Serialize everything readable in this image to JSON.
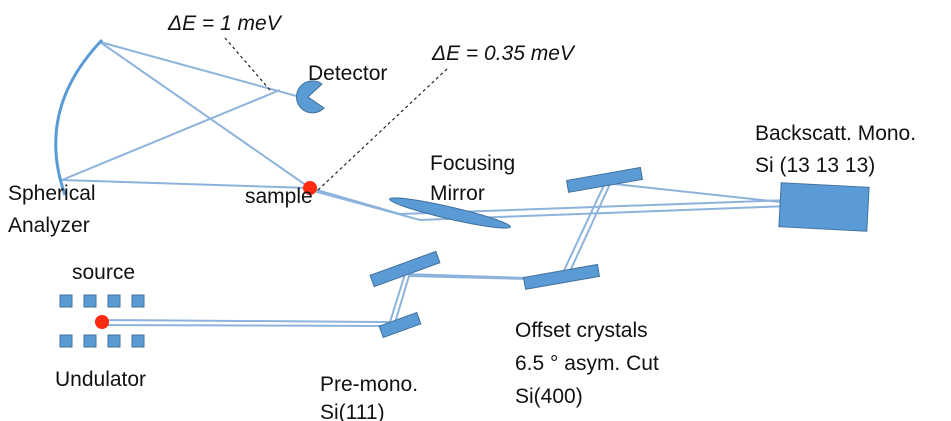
{
  "labels": [
    "ΔE = 1 meV",
    "Detector",
    "ΔE = 0.35 meV",
    "Backscatt. Mono.",
    "Si (13 13 13)",
    "Focusing",
    "Mirror",
    "Spherical",
    "Analyzer",
    "sample",
    "source",
    "Undulator",
    "Offset crystals",
    "6.5 ° asym. Cut",
    "Si(400)",
    "Pre-mono.",
    "Si(111)"
  ]
}
